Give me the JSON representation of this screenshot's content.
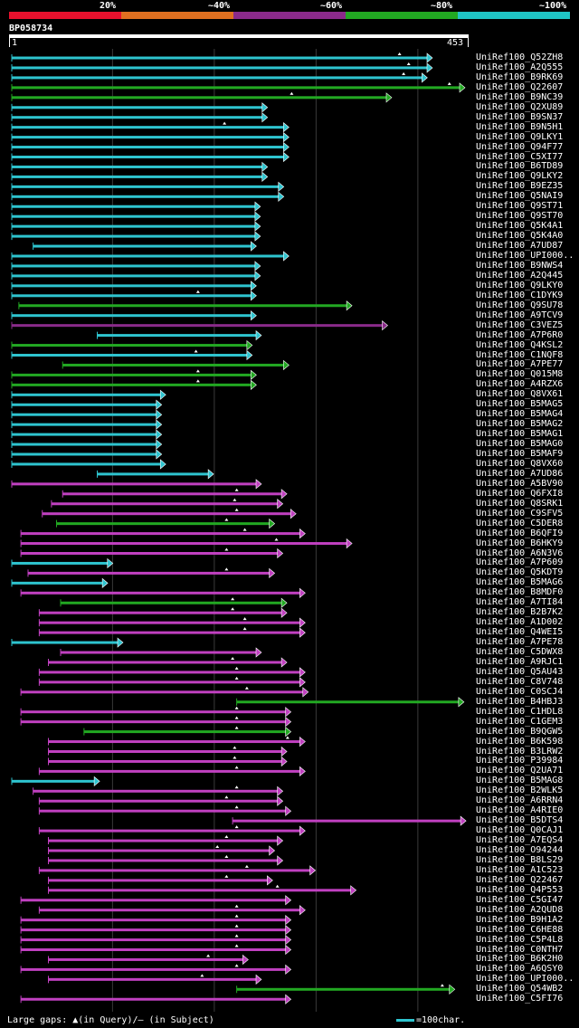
{
  "legend": {
    "labels": [
      "20%",
      "~40%",
      "~60%",
      "~80%",
      "~100%"
    ],
    "colors": [
      "#e8112d",
      "#e07020",
      "#8a2a8a",
      "#22a822",
      "#1fc4c4"
    ]
  },
  "query": {
    "name": "BP058734",
    "start": "1",
    "end": "453"
  },
  "hits": [
    {
      "name": "UniRef100_Q52ZH8",
      "color": "#2ec4cf",
      "start": 1,
      "end": 409,
      "m": 382
    },
    {
      "name": "UniRef100_A2Q555",
      "color": "#2ec4cf",
      "start": 1,
      "end": 409,
      "m": 391
    },
    {
      "name": "UniRef100_B9RK69",
      "color": "#2ec4cf",
      "start": 1,
      "end": 404,
      "m": 386
    },
    {
      "name": "UniRef100_Q22607",
      "color": "#22a822",
      "start": 1,
      "end": 441,
      "m": 431
    },
    {
      "name": "UniRef100_B9NC39",
      "color": "#22a822",
      "start": 1,
      "end": 369,
      "m": 276
    },
    {
      "name": "UniRef100_Q2XU89",
      "color": "#2ec4cf",
      "start": 1,
      "end": 247
    },
    {
      "name": "UniRef100_B9SN37",
      "color": "#2ec4cf",
      "start": 1,
      "end": 247
    },
    {
      "name": "UniRef100_B9N5H1",
      "color": "#2ec4cf",
      "start": 1,
      "end": 268,
      "m": 210
    },
    {
      "name": "UniRef100_Q9LKY1",
      "color": "#2ec4cf",
      "start": 1,
      "end": 268
    },
    {
      "name": "UniRef100_Q94F77",
      "color": "#2ec4cf",
      "start": 1,
      "end": 268
    },
    {
      "name": "UniRef100_C5XI77",
      "color": "#2ec4cf",
      "start": 1,
      "end": 268
    },
    {
      "name": "UniRef100_B6TD89",
      "color": "#2ec4cf",
      "start": 1,
      "end": 247
    },
    {
      "name": "UniRef100_Q9LKY2",
      "color": "#2ec4cf",
      "start": 1,
      "end": 247
    },
    {
      "name": "UniRef100_B9EZ35",
      "color": "#2ec4cf",
      "start": 1,
      "end": 263
    },
    {
      "name": "UniRef100_Q5NAI9",
      "color": "#2ec4cf",
      "start": 1,
      "end": 263
    },
    {
      "name": "UniRef100_Q9ST71",
      "color": "#2ec4cf",
      "start": 1,
      "end": 240
    },
    {
      "name": "UniRef100_Q9ST70",
      "color": "#2ec4cf",
      "start": 1,
      "end": 240
    },
    {
      "name": "UniRef100_Q5K4A1",
      "color": "#2ec4cf",
      "start": 1,
      "end": 240
    },
    {
      "name": "UniRef100_Q5K4A0",
      "color": "#2ec4cf",
      "start": 1,
      "end": 240
    },
    {
      "name": "UniRef100_A7UD87",
      "color": "#2ec4cf",
      "start": 22,
      "end": 236
    },
    {
      "name": "UniRef100_UPI000..",
      "color": "#2ec4cf",
      "start": 1,
      "end": 268
    },
    {
      "name": "UniRef100_B9NWS4",
      "color": "#2ec4cf",
      "start": 1,
      "end": 240
    },
    {
      "name": "UniRef100_A2Q445",
      "color": "#2ec4cf",
      "start": 1,
      "end": 240
    },
    {
      "name": "UniRef100_Q9LKY0",
      "color": "#2ec4cf",
      "start": 1,
      "end": 236
    },
    {
      "name": "UniRef100_C1DYK9",
      "color": "#2ec4cf",
      "start": 1,
      "end": 236,
      "m": 184
    },
    {
      "name": "UniRef100_Q9SU78",
      "color": "#22a822",
      "start": 8,
      "end": 330
    },
    {
      "name": "UniRef100_A9TCV9",
      "color": "#2ec4cf",
      "start": 1,
      "end": 236
    },
    {
      "name": "UniRef100_C3VEZ5",
      "color": "#8a2a8a",
      "start": 1,
      "end": 365
    },
    {
      "name": "UniRef100_A7P6R0",
      "color": "#2ec4cf",
      "start": 85,
      "end": 241
    },
    {
      "name": "UniRef100_Q4KSL2",
      "color": "#22a822",
      "start": 1,
      "end": 232
    },
    {
      "name": "UniRef100_C1NQF8",
      "color": "#2ec4cf",
      "start": 1,
      "end": 232,
      "m": 182
    },
    {
      "name": "UniRef100_A7PE77",
      "color": "#22a822",
      "start": 51,
      "end": 268
    },
    {
      "name": "UniRef100_Q015M8",
      "color": "#22a822",
      "start": 1,
      "end": 236,
      "m": 184
    },
    {
      "name": "UniRef100_A4RZX6",
      "color": "#22a822",
      "start": 1,
      "end": 236,
      "m": 184
    },
    {
      "name": "UniRef100_Q8VX61",
      "color": "#2ec4cf",
      "start": 1,
      "end": 147
    },
    {
      "name": "UniRef100_B5MAG5",
      "color": "#2ec4cf",
      "start": 1,
      "end": 143
    },
    {
      "name": "UniRef100_B5MAG4",
      "color": "#2ec4cf",
      "start": 1,
      "end": 143
    },
    {
      "name": "UniRef100_B5MAG2",
      "color": "#2ec4cf",
      "start": 1,
      "end": 143
    },
    {
      "name": "UniRef100_B5MAG1",
      "color": "#2ec4cf",
      "start": 1,
      "end": 143
    },
    {
      "name": "UniRef100_B5MAG0",
      "color": "#2ec4cf",
      "start": 1,
      "end": 143
    },
    {
      "name": "UniRef100_B5MAF9",
      "color": "#2ec4cf",
      "start": 1,
      "end": 143
    },
    {
      "name": "UniRef100_Q8VX60",
      "color": "#2ec4cf",
      "start": 1,
      "end": 147
    },
    {
      "name": "UniRef100_A7UD86",
      "color": "#2ec4cf",
      "start": 85,
      "end": 194
    },
    {
      "name": "UniRef100_A5BV90",
      "color": "#c040c0",
      "start": 1,
      "end": 241
    },
    {
      "name": "UniRef100_Q6FXI8",
      "color": "#c040c0",
      "start": 51,
      "end": 266,
      "m": 222
    },
    {
      "name": "UniRef100_Q8SRK1",
      "color": "#c040c0",
      "start": 40,
      "end": 262,
      "m": 220
    },
    {
      "name": "UniRef100_C9SFV5",
      "color": "#c040c0",
      "start": 31,
      "end": 275,
      "m": 222
    },
    {
      "name": "UniRef100_C5DER8",
      "color": "#22a822",
      "start": 45,
      "end": 254,
      "m": 212
    },
    {
      "name": "UniRef100_B6QFI9",
      "color": "#c040c0",
      "start": 10,
      "end": 284,
      "m": 230
    },
    {
      "name": "UniRef100_B6HKY9",
      "color": "#c040c0",
      "start": 10,
      "end": 330,
      "m": 261
    },
    {
      "name": "UniRef100_A6N3V6",
      "color": "#c040c0",
      "start": 10,
      "end": 262,
      "m": 212
    },
    {
      "name": "UniRef100_A7P609",
      "color": "#2ec4cf",
      "start": 1,
      "end": 95
    },
    {
      "name": "UniRef100_Q5KDT9",
      "color": "#c040c0",
      "start": 17,
      "end": 254,
      "m": 212
    },
    {
      "name": "UniRef100_B5MAG6",
      "color": "#2ec4cf",
      "start": 1,
      "end": 90
    },
    {
      "name": "UniRef100_B8MDF0",
      "color": "#c040c0",
      "start": 10,
      "end": 284
    },
    {
      "name": "UniRef100_A7TI84",
      "color": "#22a822",
      "start": 49,
      "end": 266,
      "m": 218
    },
    {
      "name": "UniRef100_B2B7K2",
      "color": "#c040c0",
      "start": 28,
      "end": 266,
      "m": 218
    },
    {
      "name": "UniRef100_A1D002",
      "color": "#c040c0",
      "start": 28,
      "end": 284,
      "m": 230
    },
    {
      "name": "UniRef100_Q4WEI5",
      "color": "#c040c0",
      "start": 28,
      "end": 284,
      "m": 230
    },
    {
      "name": "UniRef100_A7PE78",
      "color": "#2ec4cf",
      "start": 1,
      "end": 105
    },
    {
      "name": "UniRef100_C5DWX8",
      "color": "#c040c0",
      "start": 49,
      "end": 241
    },
    {
      "name": "UniRef100_A9RJC1",
      "color": "#c040c0",
      "start": 37,
      "end": 266,
      "m": 218
    },
    {
      "name": "UniRef100_Q5AU43",
      "color": "#c040c0",
      "start": 28,
      "end": 284,
      "m": 222
    },
    {
      "name": "UniRef100_C8V748",
      "color": "#c040c0",
      "start": 28,
      "end": 284,
      "m": 222
    },
    {
      "name": "UniRef100_C0SCJ4",
      "color": "#c040c0",
      "start": 10,
      "end": 287,
      "m": 232
    },
    {
      "name": "UniRef100_B4HBJ3",
      "color": "#22a822",
      "start": 222,
      "end": 440
    },
    {
      "name": "UniRef100_C1HDL8",
      "color": "#c040c0",
      "start": 10,
      "end": 270,
      "m": 222
    },
    {
      "name": "UniRef100_C1GEM3",
      "color": "#c040c0",
      "start": 10,
      "end": 270,
      "m": 222
    },
    {
      "name": "UniRef100_B9QGW5",
      "color": "#22a822",
      "start": 72,
      "end": 270,
      "m": 222
    },
    {
      "name": "UniRef100_B6K598",
      "color": "#c040c0",
      "start": 37,
      "end": 284,
      "m": 272
    },
    {
      "name": "UniRef100_B3LRW2",
      "color": "#c040c0",
      "start": 37,
      "end": 266,
      "m": 220
    },
    {
      "name": "UniRef100_P39984",
      "color": "#c040c0",
      "start": 37,
      "end": 266,
      "m": 220
    },
    {
      "name": "UniRef100_Q2UA71",
      "color": "#c040c0",
      "start": 28,
      "end": 284,
      "m": 222
    },
    {
      "name": "UniRef100_B5MAG8",
      "color": "#2ec4cf",
      "start": 1,
      "end": 82
    },
    {
      "name": "UniRef100_B2WLK5",
      "color": "#c040c0",
      "start": 22,
      "end": 262,
      "m": 222
    },
    {
      "name": "UniRef100_A6RRN4",
      "color": "#c040c0",
      "start": 28,
      "end": 262,
      "m": 212
    },
    {
      "name": "UniRef100_A4RIE0",
      "color": "#c040c0",
      "start": 28,
      "end": 270,
      "m": 222
    },
    {
      "name": "UniRef100_B5DTS4",
      "color": "#c040c0",
      "start": 218,
      "end": 442
    },
    {
      "name": "UniRef100_Q0CAJ1",
      "color": "#c040c0",
      "start": 28,
      "end": 284,
      "m": 222
    },
    {
      "name": "UniRef100_A7EQS4",
      "color": "#c040c0",
      "start": 37,
      "end": 262,
      "m": 212
    },
    {
      "name": "UniRef100_O94244",
      "color": "#c040c0",
      "start": 37,
      "end": 254,
      "m": 203
    },
    {
      "name": "UniRef100_B8LS29",
      "color": "#c040c0",
      "start": 37,
      "end": 262,
      "m": 212
    },
    {
      "name": "UniRef100_A1C523",
      "color": "#c040c0",
      "start": 28,
      "end": 294,
      "m": 232
    },
    {
      "name": "UniRef100_Q22467",
      "color": "#c040c0",
      "start": 37,
      "end": 252,
      "m": 212
    },
    {
      "name": "UniRef100_Q4P553",
      "color": "#c040c0",
      "start": 37,
      "end": 334,
      "m": 262
    },
    {
      "name": "UniRef100_C5GI47",
      "color": "#c040c0",
      "start": 10,
      "end": 270
    },
    {
      "name": "UniRef100_A2QUD8",
      "color": "#c040c0",
      "start": 28,
      "end": 284,
      "m": 222
    },
    {
      "name": "UniRef100_B9H1A2",
      "color": "#c040c0",
      "start": 10,
      "end": 270,
      "m": 222
    },
    {
      "name": "UniRef100_C6HE88",
      "color": "#c040c0",
      "start": 10,
      "end": 270,
      "m": 222
    },
    {
      "name": "UniRef100_C5P4L8",
      "color": "#c040c0",
      "start": 10,
      "end": 270,
      "m": 222
    },
    {
      "name": "UniRef100_C0NTH7",
      "color": "#c040c0",
      "start": 10,
      "end": 270,
      "m": 222
    },
    {
      "name": "UniRef100_B6K2H0",
      "color": "#c040c0",
      "start": 37,
      "end": 228,
      "m": 194
    },
    {
      "name": "UniRef100_A6QSY0",
      "color": "#c040c0",
      "start": 10,
      "end": 270,
      "m": 222
    },
    {
      "name": "UniRef100_UPI000..",
      "color": "#c040c0",
      "start": 37,
      "end": 241,
      "m": 188
    },
    {
      "name": "UniRef100_Q54WB2",
      "color": "#22a822",
      "start": 222,
      "end": 431,
      "m": 424
    },
    {
      "name": "UniRef100_C5FI76",
      "color": "#c040c0",
      "start": 10,
      "end": 270
    }
  ],
  "footer": {
    "gaps_text": "Large gaps: ▲(in Query)/— (in Subject)",
    "scale_text": "=100char."
  }
}
